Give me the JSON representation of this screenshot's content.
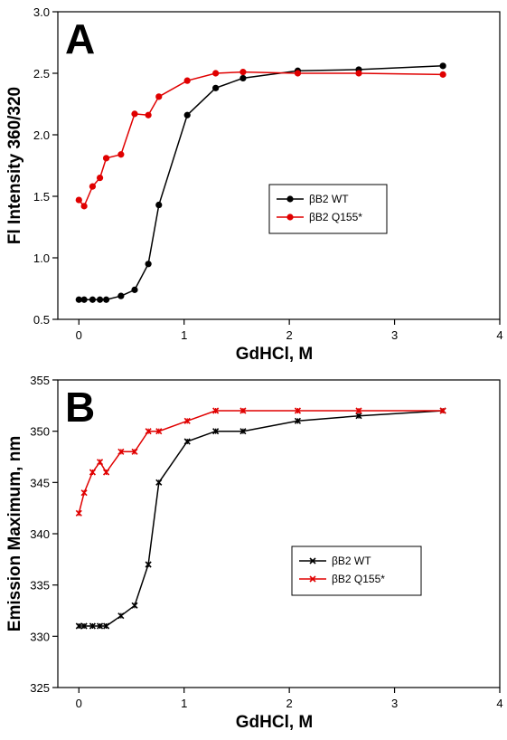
{
  "chart_data": [
    {
      "type": "line",
      "panel_label": "A",
      "xlabel": "GdHCl, M",
      "ylabel": "Fl Intensity 360/320",
      "xlim": [
        -0.2,
        4
      ],
      "ylim": [
        0.5,
        3.0
      ],
      "xticks": [
        0,
        1,
        2,
        3,
        4
      ],
      "yticks": [
        0.5,
        1.0,
        1.5,
        2.0,
        2.5,
        3.0
      ],
      "ytick_labels": [
        "0.5",
        "1.0",
        "1.5",
        "2.0",
        "2.5",
        "3.0"
      ],
      "legend_position": "center-right",
      "series": [
        {
          "name": "βB2 WT",
          "color": "#000000",
          "marker": "circle",
          "x": [
            0,
            0.05,
            0.13,
            0.2,
            0.26,
            0.4,
            0.53,
            0.66,
            0.76,
            1.03,
            1.3,
            1.56,
            2.08,
            2.66,
            3.46
          ],
          "y": [
            0.66,
            0.66,
            0.66,
            0.66,
            0.66,
            0.69,
            0.74,
            0.95,
            1.43,
            2.16,
            2.38,
            2.46,
            2.52,
            2.53,
            2.56
          ]
        },
        {
          "name": "βB2 Q155*",
          "color": "#e00000",
          "marker": "circle",
          "x": [
            0,
            0.05,
            0.13,
            0.2,
            0.26,
            0.4,
            0.53,
            0.66,
            0.76,
            1.03,
            1.3,
            1.56,
            2.08,
            2.66,
            3.46
          ],
          "y": [
            1.47,
            1.42,
            1.58,
            1.65,
            1.81,
            1.84,
            2.17,
            2.16,
            2.31,
            2.44,
            2.5,
            2.51,
            2.5,
            2.5,
            2.49
          ]
        }
      ]
    },
    {
      "type": "line",
      "panel_label": "B",
      "xlabel": "GdHCl, M",
      "ylabel": "Emission Maximum, nm",
      "xlim": [
        -0.2,
        4
      ],
      "ylim": [
        325,
        355
      ],
      "xticks": [
        0,
        1,
        2,
        3,
        4
      ],
      "yticks": [
        325,
        330,
        335,
        340,
        345,
        350,
        355
      ],
      "ytick_labels": [
        "325",
        "330",
        "335",
        "340",
        "345",
        "350",
        "355"
      ],
      "legend_position": "center-right",
      "series": [
        {
          "name": "βB2  WT",
          "color": "#000000",
          "marker": "x",
          "x": [
            0,
            0.05,
            0.13,
            0.2,
            0.26,
            0.4,
            0.53,
            0.66,
            0.76,
            1.03,
            1.3,
            1.56,
            2.08,
            2.66,
            3.46
          ],
          "y": [
            331,
            331,
            331,
            331,
            331,
            332,
            333,
            337,
            345,
            349,
            350,
            350,
            351,
            351.5,
            352
          ]
        },
        {
          "name": "βB2 Q155*",
          "color": "#e00000",
          "marker": "x",
          "x": [
            0,
            0.05,
            0.13,
            0.2,
            0.26,
            0.4,
            0.53,
            0.66,
            0.76,
            1.03,
            1.3,
            1.56,
            2.08,
            2.66,
            3.46
          ],
          "y": [
            342,
            344,
            346,
            347,
            346,
            348,
            348,
            350,
            350,
            351,
            352,
            352,
            352,
            352,
            352
          ]
        }
      ]
    }
  ]
}
